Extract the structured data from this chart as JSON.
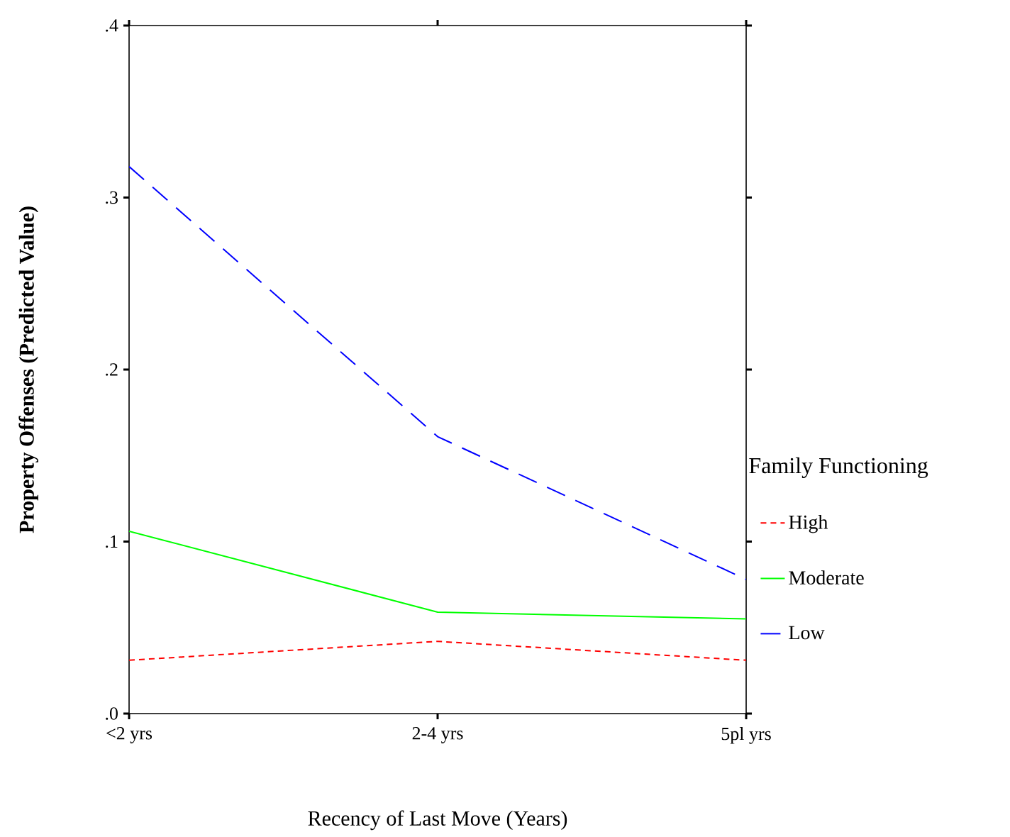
{
  "chart_data": {
    "type": "line",
    "xlabel": "Recency of Last Move (Years)",
    "ylabel": "Property Offenses (Predicted Value)",
    "legend_title": "Family Functioning",
    "legend": "right",
    "categories": [
      "<2 yrs",
      "2-4 yrs",
      "5pl yrs"
    ],
    "ylim": [
      0,
      0.4
    ],
    "yticks": [
      {
        "value": 0,
        "label": ".0"
      },
      {
        "value": 0.1,
        "label": ".1"
      },
      {
        "value": 0.2,
        "label": ".2"
      },
      {
        "value": 0.3,
        "label": ".3"
      },
      {
        "value": 0.4,
        "label": ".4"
      }
    ],
    "grid": false,
    "marker": "none",
    "series": [
      {
        "name": "High",
        "color": "#ff0000",
        "line_style": "dotted",
        "values": [
          0.031,
          0.042,
          0.031
        ]
      },
      {
        "name": "Moderate",
        "color": "#00ff00",
        "line_style": "solid",
        "values": [
          0.106,
          0.059,
          0.055
        ]
      },
      {
        "name": "Low",
        "color": "#0000ff",
        "line_style": "dashed",
        "values": [
          0.318,
          0.161,
          0.078
        ]
      }
    ]
  }
}
